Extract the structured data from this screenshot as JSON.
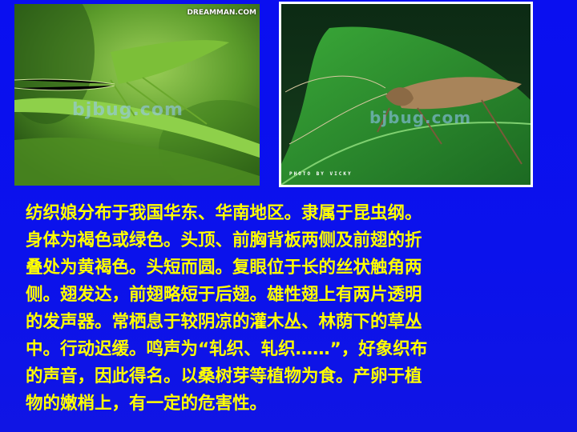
{
  "images": {
    "left": {
      "subject": "green katydid on grass blade",
      "logo_text": "DREAMMAN.COM",
      "watermark": "bjbug.com"
    },
    "right": {
      "subject": "brown katydid on green leaf",
      "watermark": "bjbug.com",
      "credit": "PHOTO BY VICKY"
    }
  },
  "text_lines": [
    "纺织娘分布于我国华东、华南地区。隶属于昆虫纲。",
    "身体为褐色或绿色。头顶、前胸背板两侧及前翅的折",
    "叠处为黄褐色。头短而圆。复眼位于长的丝状触角两",
    "侧。翅发达，前翅略短于后翅。雄性翅上有两片透明",
    "的发声器。常栖息于较阴凉的灌木丛、林荫下的草丛",
    "中。行动迟缓。鸣声为“轧织、轧织……”，好象织布",
    "的声音，因此得名。以桑树芽等植物为食。产卵于植",
    "物的嫩梢上，有一定的危害性。"
  ],
  "colors": {
    "background": "#0b12ec",
    "text": "#ffff00"
  }
}
